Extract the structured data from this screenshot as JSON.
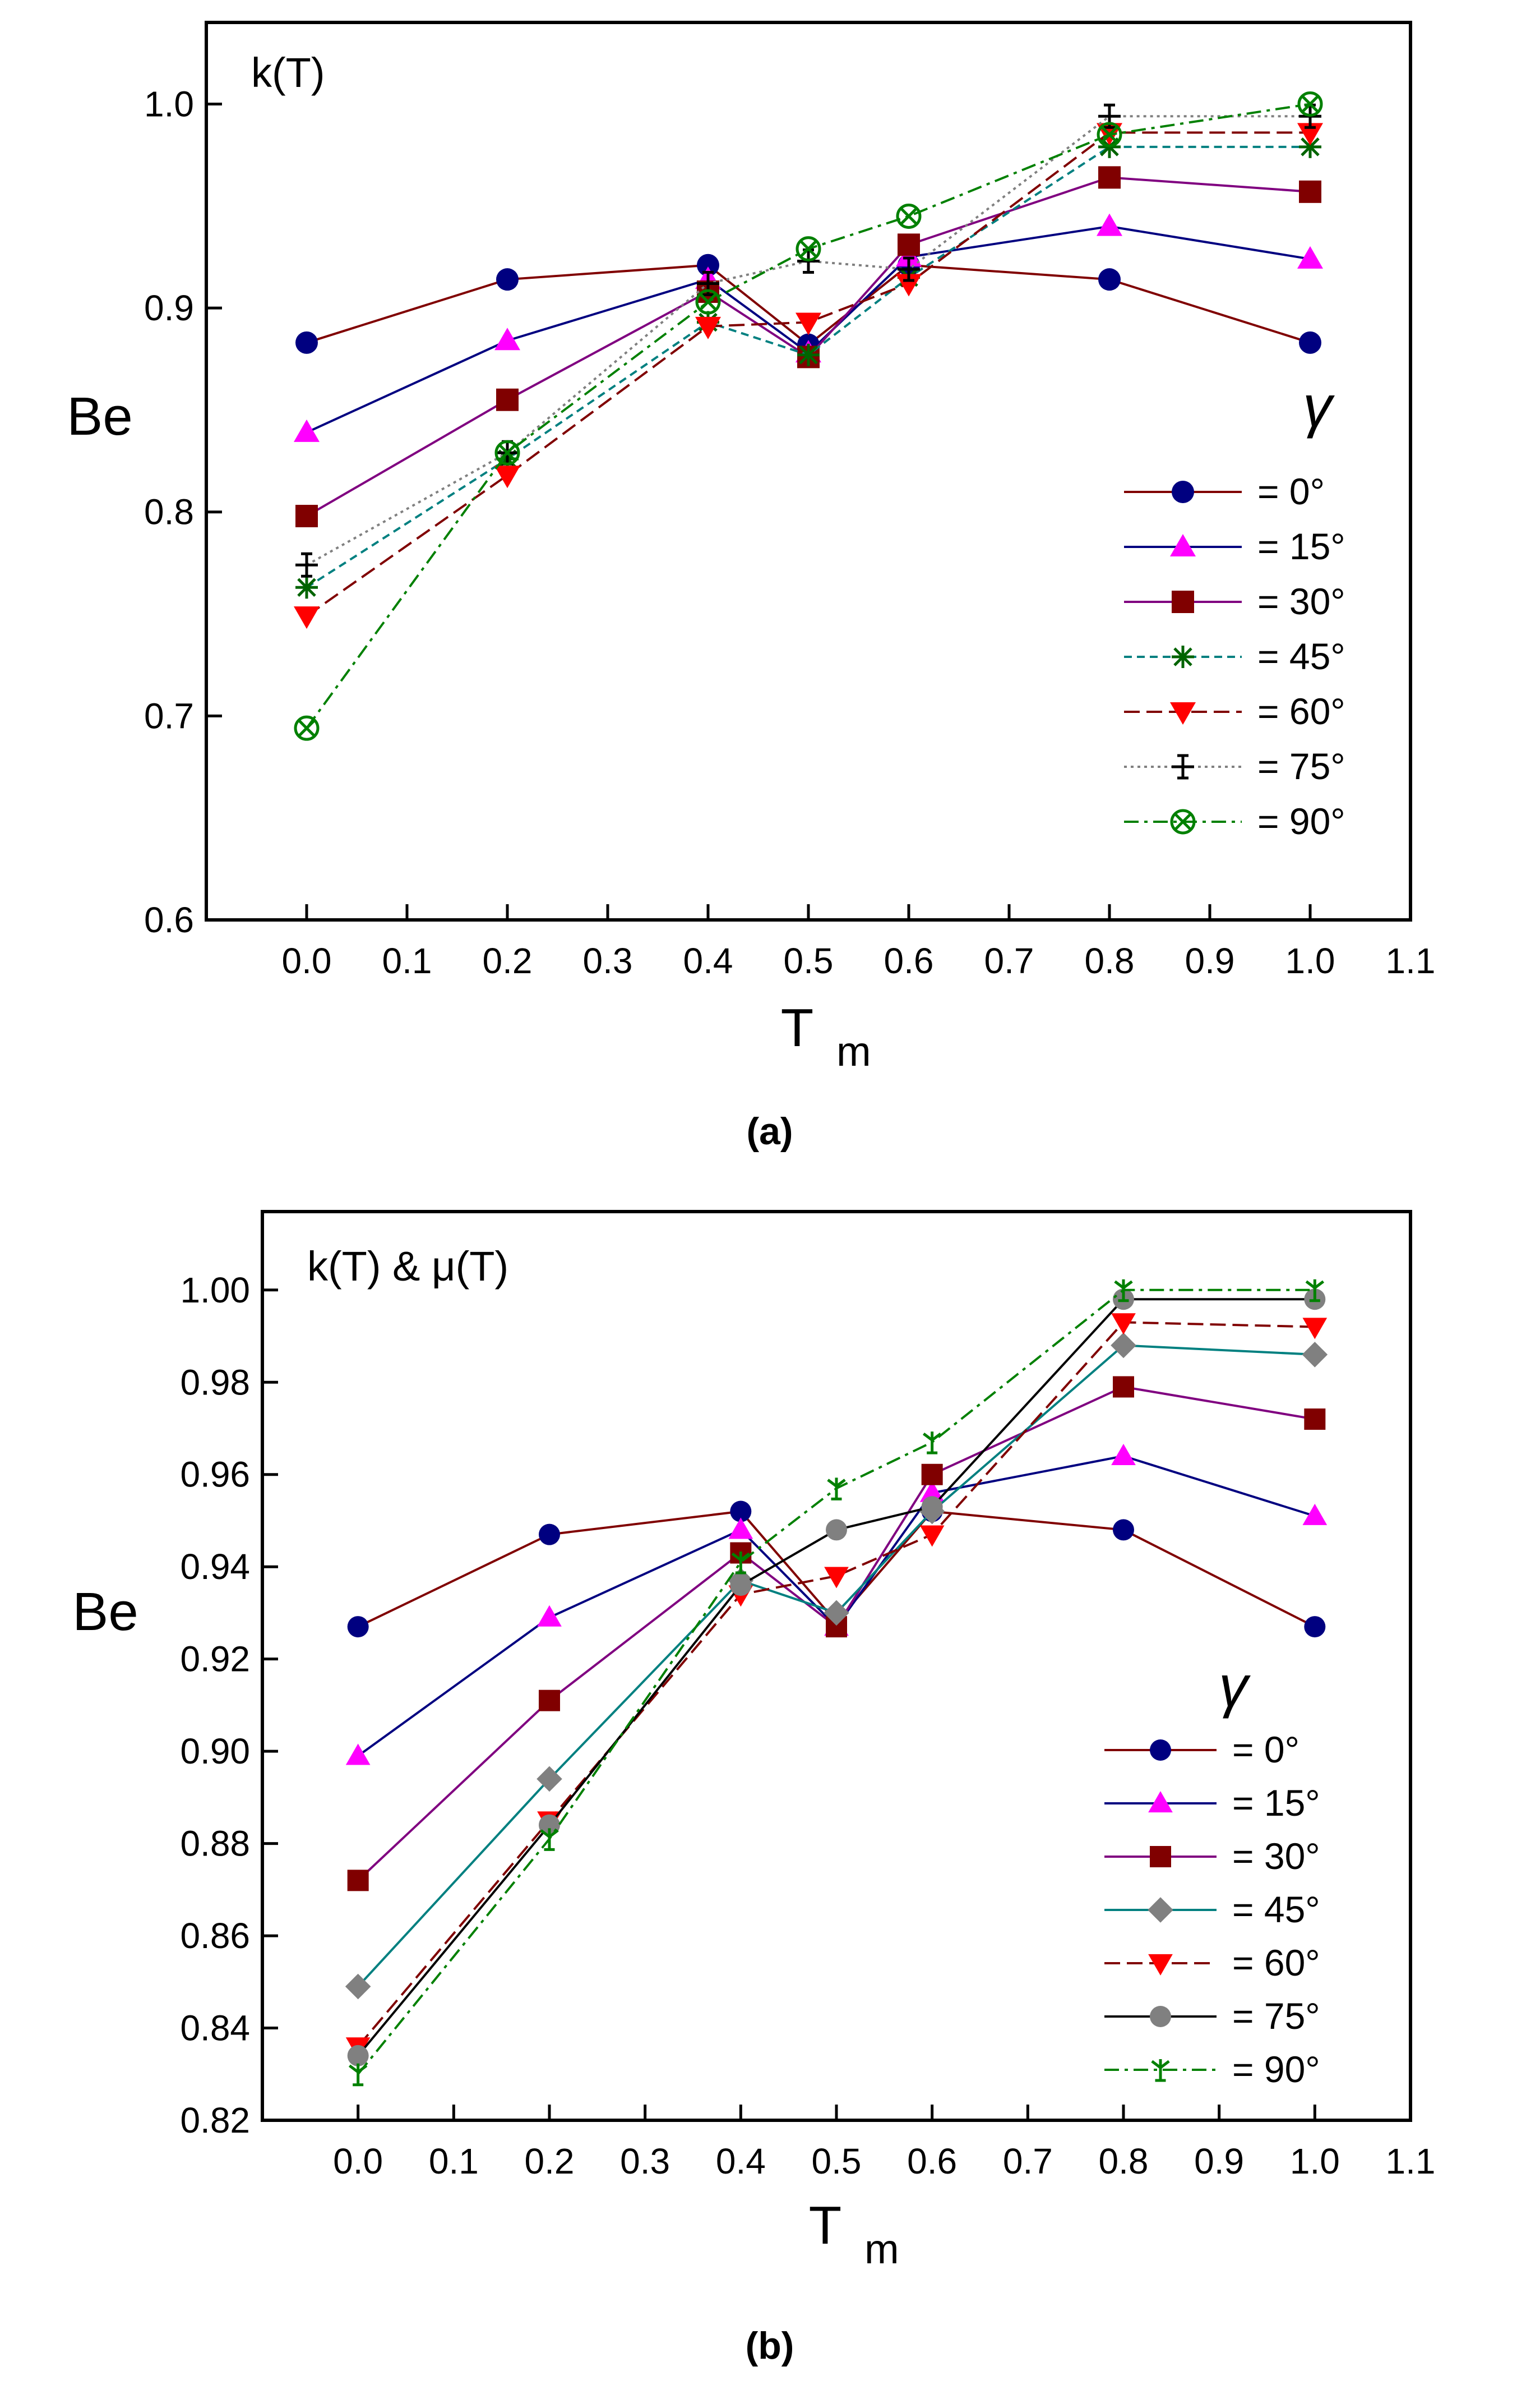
{
  "chart_data": [
    {
      "type": "line",
      "panel_label": "(a)",
      "annotation": "k(T)",
      "xlabel": "T",
      "xlabel_sub": "m",
      "ylabel": "Be",
      "legend_title": "γ",
      "legend_position": "right",
      "xlim": [
        -0.1,
        1.1
      ],
      "ylim": [
        0.6,
        1.04
      ],
      "xticks": [
        0.0,
        0.1,
        0.2,
        0.3,
        0.4,
        0.5,
        0.6,
        0.7,
        0.8,
        0.9,
        1.0,
        1.1
      ],
      "yticks": [
        0.6,
        0.7,
        0.8,
        0.9,
        1.0
      ],
      "xtick_labels": [
        "0.0",
        "0.1",
        "0.2",
        "0.3",
        "0.4",
        "0.5",
        "0.6",
        "0.7",
        "0.8",
        "0.9",
        "1.0",
        "1.1"
      ],
      "ytick_labels": [
        "0.6",
        "0.7",
        "0.8",
        "0.9",
        "1.0"
      ],
      "grid": false,
      "x": [
        0.0,
        0.2,
        0.4,
        0.5,
        0.6,
        0.8,
        1.0
      ],
      "series": [
        {
          "name": "= 0°",
          "color": "#000080",
          "line_color": "#800000",
          "marker": "circle",
          "dash": "solid",
          "values": [
            0.883,
            0.914,
            0.921,
            0.882,
            0.921,
            0.914,
            0.883
          ]
        },
        {
          "name": "= 15°",
          "color": "#ff00ff",
          "line_color": "#000080",
          "marker": "triangle",
          "dash": "solid",
          "values": [
            0.839,
            0.884,
            0.914,
            0.878,
            0.925,
            0.94,
            0.924
          ]
        },
        {
          "name": "= 30°",
          "color": "#800000",
          "line_color": "#800080",
          "marker": "square",
          "dash": "solid",
          "values": [
            0.798,
            0.855,
            0.908,
            0.876,
            0.931,
            0.964,
            0.957
          ]
        },
        {
          "name": "= 45°",
          "color": "#006400",
          "line_color": "#008080",
          "marker": "asterisk",
          "dash": "dashed",
          "values": [
            0.763,
            0.826,
            0.893,
            0.877,
            0.915,
            0.979,
            0.979
          ]
        },
        {
          "name": "= 60°",
          "color": "#ff0000",
          "line_color": "#800000",
          "marker": "triangle-down",
          "dash": "longdash",
          "values": [
            0.749,
            0.818,
            0.891,
            0.893,
            0.912,
            0.986,
            0.986
          ]
        },
        {
          "name": "= 75°",
          "color": "#000000",
          "line_color": "#808080",
          "marker": "plus",
          "dash": "dotted",
          "values": [
            0.774,
            0.829,
            0.912,
            0.923,
            0.919,
            0.994,
            0.994
          ]
        },
        {
          "name": "= 90°",
          "color": "#008000",
          "line_color": "#008000",
          "marker": "circle-x",
          "dash": "dashdot",
          "values": [
            0.694,
            0.829,
            0.903,
            0.929,
            0.945,
            0.985,
            1.0
          ]
        }
      ]
    },
    {
      "type": "line",
      "panel_label": "(b)",
      "annotation": "k(T) & μ(T)",
      "xlabel": "T",
      "xlabel_sub": "m",
      "ylabel": "Be",
      "legend_title": "γ",
      "legend_position": "right",
      "xlim": [
        -0.1,
        1.1
      ],
      "ylim": [
        0.82,
        1.017
      ],
      "xticks": [
        0.0,
        0.1,
        0.2,
        0.3,
        0.4,
        0.5,
        0.6,
        0.7,
        0.8,
        0.9,
        1.0,
        1.1
      ],
      "yticks": [
        0.82,
        0.84,
        0.86,
        0.88,
        0.9,
        0.92,
        0.94,
        0.96,
        0.98,
        1.0
      ],
      "xtick_labels": [
        "0.0",
        "0.1",
        "0.2",
        "0.3",
        "0.4",
        "0.5",
        "0.6",
        "0.7",
        "0.8",
        "0.9",
        "1.0",
        "1.1"
      ],
      "ytick_labels": [
        "0.82",
        "0.84",
        "0.86",
        "0.88",
        "0.90",
        "0.92",
        "0.94",
        "0.96",
        "0.98",
        "1.00"
      ],
      "grid": false,
      "x": [
        0.0,
        0.2,
        0.4,
        0.5,
        0.6,
        0.8,
        1.0
      ],
      "series": [
        {
          "name": "= 0°",
          "color": "#000080",
          "line_color": "#800000",
          "marker": "circle",
          "dash": "solid",
          "values": [
            0.927,
            0.947,
            0.952,
            0.928,
            0.952,
            0.948,
            0.927
          ]
        },
        {
          "name": "= 15°",
          "color": "#ff00ff",
          "line_color": "#000080",
          "marker": "triangle",
          "dash": "solid",
          "values": [
            0.899,
            0.929,
            0.948,
            0.927,
            0.956,
            0.964,
            0.951
          ]
        },
        {
          "name": "= 30°",
          "color": "#800000",
          "line_color": "#800080",
          "marker": "square",
          "dash": "solid",
          "values": [
            0.872,
            0.911,
            0.943,
            0.927,
            0.96,
            0.979,
            0.972
          ]
        },
        {
          "name": "= 45°",
          "color": "#808080",
          "line_color": "#008080",
          "marker": "diamond",
          "dash": "solid",
          "values": [
            0.849,
            0.894,
            0.937,
            0.93,
            0.952,
            0.988,
            0.986
          ]
        },
        {
          "name": "= 60°",
          "color": "#ff0000",
          "line_color": "#800000",
          "marker": "triangle-down",
          "dash": "longdash",
          "values": [
            0.836,
            0.885,
            0.934,
            0.938,
            0.947,
            0.993,
            0.992
          ]
        },
        {
          "name": "= 75°",
          "color": "#808080",
          "line_color": "#000000",
          "marker": "circle",
          "dash": "solid",
          "values": [
            0.834,
            0.884,
            0.936,
            0.948,
            0.953,
            0.998,
            0.998
          ]
        },
        {
          "name": "= 90°",
          "color": "#008000",
          "line_color": "#008000",
          "marker": "tick",
          "dash": "dashdot",
          "values": [
            0.83,
            0.881,
            0.941,
            0.957,
            0.967,
            1.0,
            1.0
          ]
        }
      ]
    }
  ]
}
